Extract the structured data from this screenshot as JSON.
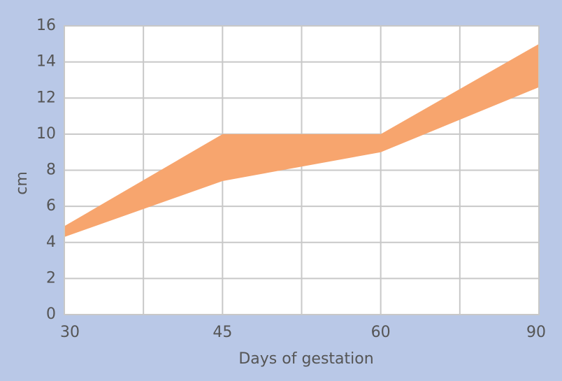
{
  "chart_data": {
    "type": "band",
    "x_label": "Days of gestation",
    "y_label": "cm",
    "categories": [
      "30",
      "45",
      "60",
      "90"
    ],
    "series": [
      {
        "color": "#f7a56e",
        "values": [
          4.3,
          7.4,
          9.0,
          12.6
        ]
      },
      {
        "color": "#f7a56e",
        "values": [
          4.9,
          10,
          10,
          15
        ]
      }
    ],
    "ylim": [
      0,
      16
    ],
    "yticks": [
      0,
      2,
      4,
      6,
      8,
      10,
      12,
      14,
      16
    ],
    "grid": true
  }
}
